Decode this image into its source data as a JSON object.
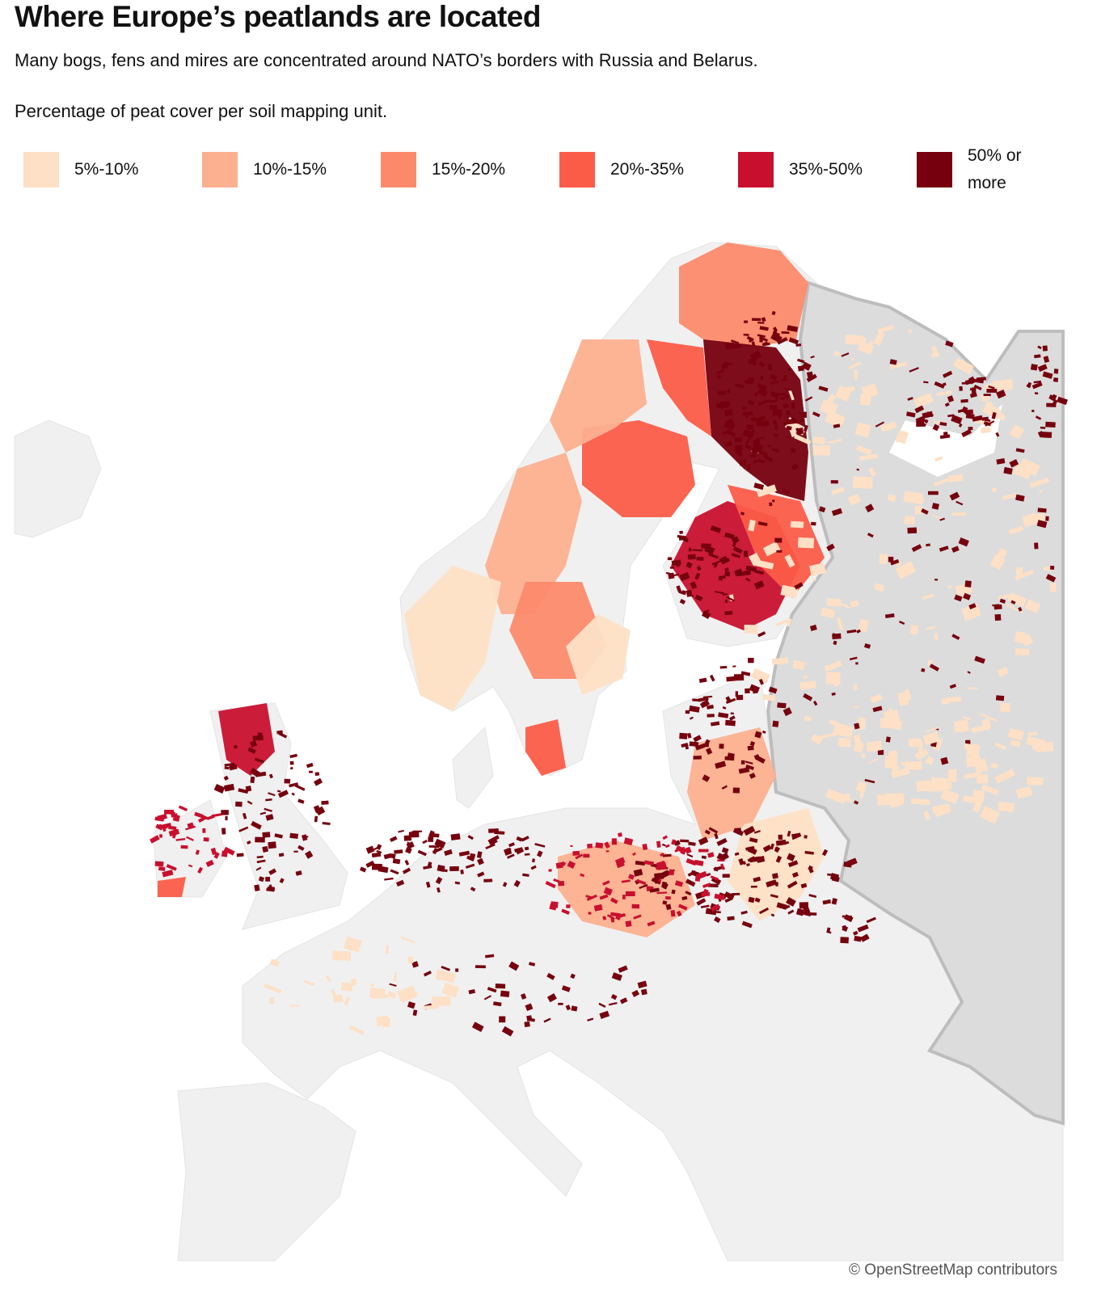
{
  "header": {
    "title": "Where Europe’s peatlands are located",
    "subtitle": "Many bogs, fens and mires are concentrated around NATO’s borders with Russia and Belarus.",
    "note": "Percentage of peat cover per soil mapping unit."
  },
  "legend": [
    {
      "label": "5%-10%",
      "color": "#fde0c5"
    },
    {
      "label": "10%-15%",
      "color": "#fcb08f"
    },
    {
      "label": "15%-20%",
      "color": "#fc8a6a"
    },
    {
      "label": "20%-35%",
      "color": "#fb5c48"
    },
    {
      "label": "35%-50%",
      "color": "#c8102e"
    },
    {
      "label": "50% or more",
      "color": "#76000e"
    }
  ],
  "attribution": "© OpenStreetMap contributors"
}
